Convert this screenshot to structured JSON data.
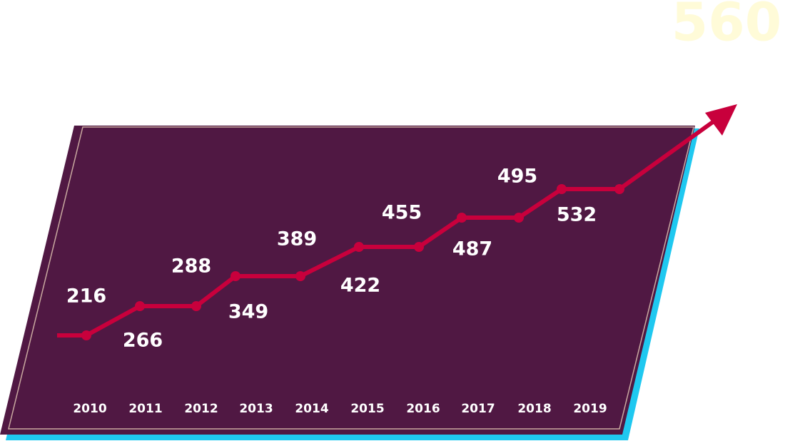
{
  "highlight": 560,
  "years": [
    "2010",
    "2011",
    "2012",
    "2013",
    "2014",
    "2015",
    "2016",
    "2017",
    "2018",
    "2019"
  ],
  "values": [
    216,
    266,
    288,
    349,
    389,
    422,
    455,
    487,
    495,
    532
  ]
}
